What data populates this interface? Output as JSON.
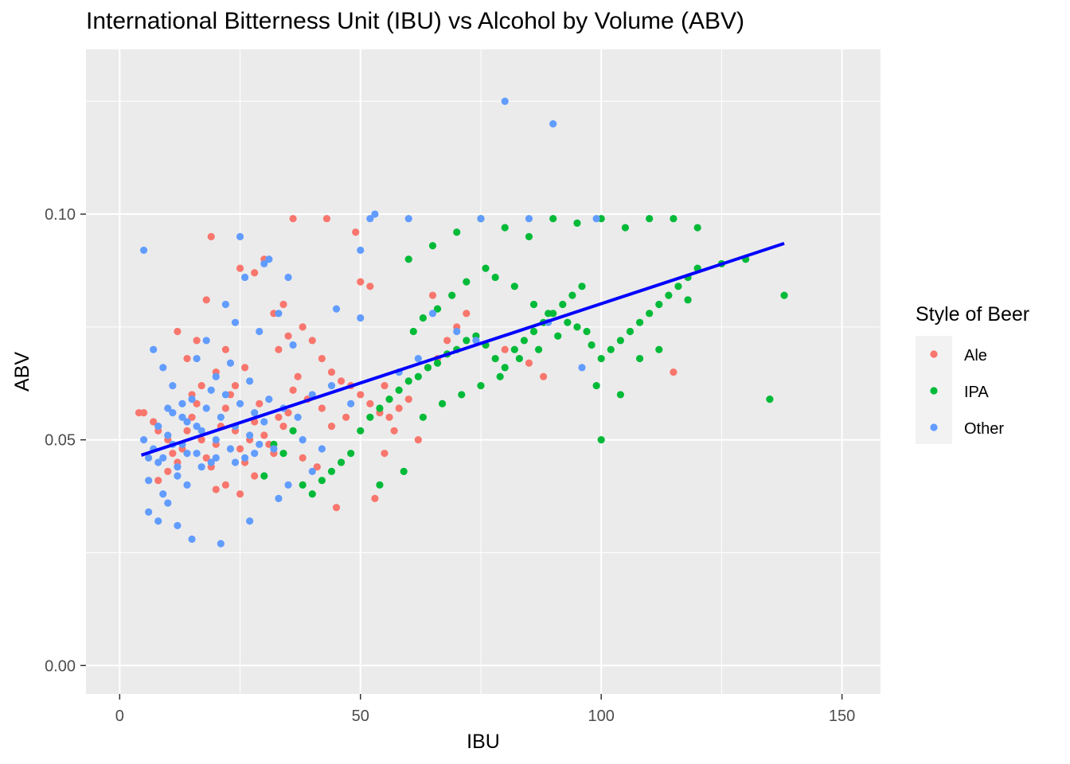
{
  "chart_data": {
    "type": "scatter",
    "title": "International Bitterness Unit (IBU) vs Alcohol by Volume (ABV)",
    "xlabel": "IBU",
    "ylabel": "ABV",
    "xlim": [
      -7,
      158
    ],
    "ylim": [
      -0.0063,
      0.1365
    ],
    "x_ticks": [
      "0",
      "50",
      "100",
      "150"
    ],
    "y_ticks": [
      "0.00",
      "0.05",
      "0.10"
    ],
    "grid": true,
    "legend": {
      "title": "Style of Beer",
      "position": "right"
    },
    "colors": {
      "Ale": "#F8766D",
      "IPA": "#00BA38",
      "Other": "#619CFF",
      "trend": "#0000FF"
    },
    "series": [
      {
        "name": "Ale",
        "points": [
          [
            4,
            0.056
          ],
          [
            5,
            0.056
          ],
          [
            7,
            0.054
          ],
          [
            8,
            0.052
          ],
          [
            10,
            0.05
          ],
          [
            11,
            0.047
          ],
          [
            12,
            0.045
          ],
          [
            13,
            0.048
          ],
          [
            14,
            0.052
          ],
          [
            15,
            0.055
          ],
          [
            16,
            0.058
          ],
          [
            17,
            0.05
          ],
          [
            18,
            0.046
          ],
          [
            19,
            0.044
          ],
          [
            20,
            0.049
          ],
          [
            21,
            0.053
          ],
          [
            22,
            0.057
          ],
          [
            23,
            0.06
          ],
          [
            24,
            0.052
          ],
          [
            25,
            0.048
          ],
          [
            26,
            0.045
          ],
          [
            27,
            0.05
          ],
          [
            28,
            0.054
          ],
          [
            29,
            0.058
          ],
          [
            30,
            0.051
          ],
          [
            31,
            0.049
          ],
          [
            32,
            0.047
          ],
          [
            33,
            0.055
          ],
          [
            34,
            0.053
          ],
          [
            35,
            0.056
          ],
          [
            12,
            0.074
          ],
          [
            14,
            0.068
          ],
          [
            16,
            0.072
          ],
          [
            18,
            0.081
          ],
          [
            20,
            0.065
          ],
          [
            22,
            0.07
          ],
          [
            24,
            0.062
          ],
          [
            26,
            0.066
          ],
          [
            28,
            0.087
          ],
          [
            30,
            0.09
          ],
          [
            19,
            0.095
          ],
          [
            25,
            0.088
          ],
          [
            32,
            0.078
          ],
          [
            34,
            0.08
          ],
          [
            36,
            0.099
          ],
          [
            43,
            0.099
          ],
          [
            49,
            0.096
          ],
          [
            38,
            0.075
          ],
          [
            40,
            0.072
          ],
          [
            42,
            0.068
          ],
          [
            44,
            0.065
          ],
          [
            46,
            0.063
          ],
          [
            48,
            0.062
          ],
          [
            50,
            0.06
          ],
          [
            52,
            0.058
          ],
          [
            54,
            0.056
          ],
          [
            56,
            0.055
          ],
          [
            58,
            0.057
          ],
          [
            60,
            0.059
          ],
          [
            45,
            0.035
          ],
          [
            53,
            0.037
          ],
          [
            55,
            0.047
          ],
          [
            57,
            0.052
          ],
          [
            62,
            0.05
          ],
          [
            64,
            0.066
          ],
          [
            66,
            0.068
          ],
          [
            68,
            0.072
          ],
          [
            70,
            0.075
          ],
          [
            72,
            0.078
          ],
          [
            65,
            0.082
          ],
          [
            50,
            0.085
          ],
          [
            52,
            0.084
          ],
          [
            55,
            0.062
          ],
          [
            80,
            0.07
          ],
          [
            85,
            0.067
          ],
          [
            88,
            0.064
          ],
          [
            115,
            0.065
          ],
          [
            20,
            0.039
          ],
          [
            22,
            0.04
          ],
          [
            25,
            0.038
          ],
          [
            28,
            0.042
          ],
          [
            38,
            0.046
          ],
          [
            41,
            0.044
          ],
          [
            15,
            0.06
          ],
          [
            17,
            0.062
          ],
          [
            10,
            0.043
          ],
          [
            8,
            0.041
          ],
          [
            36,
            0.061
          ],
          [
            39,
            0.059
          ],
          [
            42,
            0.057
          ],
          [
            47,
            0.055
          ],
          [
            44,
            0.053
          ],
          [
            33,
            0.07
          ],
          [
            35,
            0.073
          ],
          [
            37,
            0.064
          ]
        ]
      },
      {
        "name": "IPA",
        "points": [
          [
            30,
            0.042
          ],
          [
            32,
            0.049
          ],
          [
            34,
            0.047
          ],
          [
            36,
            0.052
          ],
          [
            38,
            0.04
          ],
          [
            40,
            0.038
          ],
          [
            42,
            0.041
          ],
          [
            44,
            0.043
          ],
          [
            46,
            0.045
          ],
          [
            48,
            0.047
          ],
          [
            50,
            0.052
          ],
          [
            52,
            0.055
          ],
          [
            54,
            0.057
          ],
          [
            56,
            0.059
          ],
          [
            58,
            0.061
          ],
          [
            60,
            0.063
          ],
          [
            62,
            0.064
          ],
          [
            64,
            0.066
          ],
          [
            66,
            0.067
          ],
          [
            68,
            0.069
          ],
          [
            70,
            0.07
          ],
          [
            72,
            0.072
          ],
          [
            74,
            0.073
          ],
          [
            76,
            0.071
          ],
          [
            78,
            0.068
          ],
          [
            80,
            0.066
          ],
          [
            82,
            0.07
          ],
          [
            84,
            0.072
          ],
          [
            86,
            0.074
          ],
          [
            88,
            0.076
          ],
          [
            90,
            0.078
          ],
          [
            92,
            0.08
          ],
          [
            94,
            0.082
          ],
          [
            96,
            0.084
          ],
          [
            98,
            0.071
          ],
          [
            100,
            0.068
          ],
          [
            102,
            0.07
          ],
          [
            104,
            0.072
          ],
          [
            106,
            0.074
          ],
          [
            108,
            0.076
          ],
          [
            110,
            0.078
          ],
          [
            112,
            0.08
          ],
          [
            114,
            0.082
          ],
          [
            116,
            0.084
          ],
          [
            118,
            0.086
          ],
          [
            120,
            0.088
          ],
          [
            54,
            0.04
          ],
          [
            59,
            0.043
          ],
          [
            63,
            0.055
          ],
          [
            67,
            0.058
          ],
          [
            71,
            0.06
          ],
          [
            75,
            0.062
          ],
          [
            79,
            0.064
          ],
          [
            83,
            0.068
          ],
          [
            87,
            0.07
          ],
          [
            91,
            0.073
          ],
          [
            95,
            0.075
          ],
          [
            99,
            0.062
          ],
          [
            100,
            0.05
          ],
          [
            104,
            0.06
          ],
          [
            60,
            0.09
          ],
          [
            65,
            0.093
          ],
          [
            70,
            0.096
          ],
          [
            75,
            0.099
          ],
          [
            80,
            0.097
          ],
          [
            85,
            0.095
          ],
          [
            90,
            0.099
          ],
          [
            95,
            0.098
          ],
          [
            100,
            0.099
          ],
          [
            105,
            0.097
          ],
          [
            110,
            0.099
          ],
          [
            115,
            0.099
          ],
          [
            120,
            0.097
          ],
          [
            125,
            0.089
          ],
          [
            130,
            0.09
          ],
          [
            135,
            0.059
          ],
          [
            138,
            0.082
          ],
          [
            118,
            0.081
          ],
          [
            112,
            0.07
          ],
          [
            108,
            0.068
          ],
          [
            61,
            0.074
          ],
          [
            63,
            0.077
          ],
          [
            66,
            0.079
          ],
          [
            69,
            0.082
          ],
          [
            72,
            0.085
          ],
          [
            76,
            0.088
          ],
          [
            78,
            0.086
          ],
          [
            82,
            0.084
          ],
          [
            86,
            0.08
          ],
          [
            89,
            0.078
          ],
          [
            93,
            0.076
          ],
          [
            97,
            0.074
          ]
        ]
      },
      {
        "name": "Other",
        "points": [
          [
            5,
            0.05
          ],
          [
            6,
            0.041
          ],
          [
            7,
            0.048
          ],
          [
            8,
            0.053
          ],
          [
            9,
            0.046
          ],
          [
            10,
            0.051
          ],
          [
            11,
            0.056
          ],
          [
            12,
            0.044
          ],
          [
            13,
            0.049
          ],
          [
            14,
            0.054
          ],
          [
            15,
            0.059
          ],
          [
            16,
            0.047
          ],
          [
            17,
            0.052
          ],
          [
            18,
            0.057
          ],
          [
            19,
            0.045
          ],
          [
            20,
            0.05
          ],
          [
            21,
            0.055
          ],
          [
            22,
            0.06
          ],
          [
            23,
            0.048
          ],
          [
            24,
            0.053
          ],
          [
            25,
            0.058
          ],
          [
            26,
            0.046
          ],
          [
            27,
            0.051
          ],
          [
            28,
            0.056
          ],
          [
            29,
            0.049
          ],
          [
            30,
            0.054
          ],
          [
            6,
            0.034
          ],
          [
            8,
            0.032
          ],
          [
            10,
            0.036
          ],
          [
            12,
            0.031
          ],
          [
            15,
            0.028
          ],
          [
            21,
            0.027
          ],
          [
            27,
            0.032
          ],
          [
            5,
            0.092
          ],
          [
            7,
            0.07
          ],
          [
            9,
            0.066
          ],
          [
            11,
            0.062
          ],
          [
            13,
            0.058
          ],
          [
            16,
            0.068
          ],
          [
            18,
            0.072
          ],
          [
            20,
            0.064
          ],
          [
            22,
            0.08
          ],
          [
            24,
            0.076
          ],
          [
            25,
            0.095
          ],
          [
            26,
            0.086
          ],
          [
            29,
            0.074
          ],
          [
            30,
            0.089
          ],
          [
            31,
            0.09
          ],
          [
            33,
            0.078
          ],
          [
            35,
            0.086
          ],
          [
            36,
            0.071
          ],
          [
            40,
            0.06
          ],
          [
            45,
            0.079
          ],
          [
            50,
            0.077
          ],
          [
            52,
            0.099
          ],
          [
            53,
            0.1
          ],
          [
            50,
            0.092
          ],
          [
            60,
            0.099
          ],
          [
            75,
            0.099
          ],
          [
            80,
            0.125
          ],
          [
            90,
            0.12
          ],
          [
            85,
            0.099
          ],
          [
            99,
            0.099
          ],
          [
            89,
            0.076
          ],
          [
            65,
            0.078
          ],
          [
            70,
            0.074
          ],
          [
            40,
            0.043
          ],
          [
            35,
            0.04
          ],
          [
            33,
            0.037
          ],
          [
            38,
            0.05
          ],
          [
            42,
            0.048
          ],
          [
            14,
            0.04
          ],
          [
            12,
            0.042
          ],
          [
            9,
            0.038
          ],
          [
            17,
            0.044
          ],
          [
            19,
            0.061
          ],
          [
            23,
            0.067
          ],
          [
            27,
            0.063
          ],
          [
            31,
            0.059
          ],
          [
            34,
            0.057
          ],
          [
            37,
            0.055
          ],
          [
            10,
            0.057
          ],
          [
            13,
            0.055
          ],
          [
            16,
            0.053
          ],
          [
            6,
            0.046
          ],
          [
            8,
            0.045
          ],
          [
            11,
            0.049
          ],
          [
            14,
            0.047
          ],
          [
            20,
            0.046
          ],
          [
            24,
            0.045
          ],
          [
            28,
            0.047
          ],
          [
            32,
            0.048
          ],
          [
            44,
            0.062
          ],
          [
            48,
            0.058
          ],
          [
            58,
            0.065
          ],
          [
            62,
            0.068
          ],
          [
            74,
            0.072
          ],
          [
            96,
            0.066
          ]
        ]
      }
    ],
    "trend_line": {
      "name": "linear fit",
      "x": [
        4.5,
        138
      ],
      "y": [
        0.0466,
        0.0935
      ]
    }
  }
}
